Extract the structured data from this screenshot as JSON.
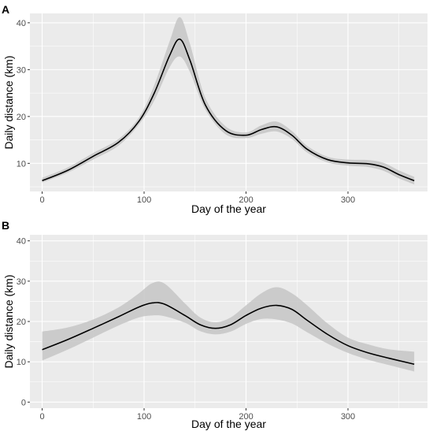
{
  "chart_data": [
    {
      "panel_label": "A",
      "type": "line",
      "xlabel": "Day of the year",
      "ylabel": "Daily distance (km)",
      "xlim": [
        -12,
        378
      ],
      "ylim": [
        4,
        42
      ],
      "xticks": [
        0,
        100,
        200,
        300
      ],
      "yticks": [
        10,
        20,
        30,
        40
      ],
      "grid": true,
      "series": [
        {
          "x": [
            0,
            25,
            50,
            75,
            95,
            110,
            125,
            135,
            145,
            160,
            180,
            200,
            215,
            230,
            245,
            260,
            280,
            300,
            320,
            335,
            350,
            365
          ],
          "y": [
            6.3,
            8.5,
            11.5,
            14.5,
            19,
            25,
            33,
            36.5,
            32,
            22.5,
            17,
            16,
            17.2,
            17.8,
            16,
            13,
            10.8,
            10.1,
            9.9,
            9.2,
            7.6,
            6.3
          ],
          "lower": [
            5.9,
            8.0,
            10.8,
            13.8,
            18.3,
            23.4,
            30.5,
            32.8,
            29.5,
            21.5,
            16.2,
            15.4,
            16.3,
            16.8,
            15.2,
            12.3,
            10.2,
            9.5,
            9.2,
            8.4,
            6.8,
            5.5
          ],
          "upper": [
            6.9,
            9.1,
            12.2,
            15.2,
            19.8,
            26.7,
            36.0,
            41.2,
            35.5,
            24.0,
            17.9,
            16.6,
            18.1,
            18.9,
            16.9,
            13.7,
            11.4,
            10.8,
            10.7,
            10.1,
            8.5,
            7.1
          ]
        }
      ]
    },
    {
      "panel_label": "B",
      "type": "line",
      "xlabel": "Day of the year",
      "ylabel": "Daily distance (km)",
      "xlim": [
        -12,
        378
      ],
      "ylim": [
        -1.5,
        41.5
      ],
      "xticks": [
        0,
        100,
        200,
        300
      ],
      "yticks": [
        0,
        10,
        20,
        30,
        40
      ],
      "grid": true,
      "series": [
        {
          "x": [
            0,
            25,
            50,
            75,
            95,
            108,
            120,
            140,
            155,
            170,
            185,
            200,
            215,
            230,
            245,
            260,
            280,
            300,
            320,
            340,
            365
          ],
          "y": [
            13,
            15.5,
            18.3,
            21.2,
            23.6,
            24.6,
            24.3,
            21.5,
            19.2,
            18.3,
            19.2,
            21.5,
            23.3,
            24,
            23,
            20.3,
            16.8,
            14,
            12.2,
            10.9,
            9.4
          ],
          "lower": [
            10.3,
            13.0,
            16.0,
            19.0,
            21.0,
            21.5,
            21.3,
            19.7,
            17.6,
            16.8,
            17.5,
            19.4,
            20.6,
            20.5,
            19.5,
            17.3,
            14.5,
            12.2,
            10.5,
            9.2,
            7.6
          ],
          "upper": [
            17.5,
            18.5,
            20.5,
            23.5,
            27.0,
            29.5,
            29.4,
            24.5,
            21.0,
            19.8,
            21.0,
            24.0,
            27.0,
            28.5,
            27.0,
            24.0,
            19.5,
            16.0,
            14.3,
            13.1,
            12.5
          ]
        }
      ]
    }
  ]
}
